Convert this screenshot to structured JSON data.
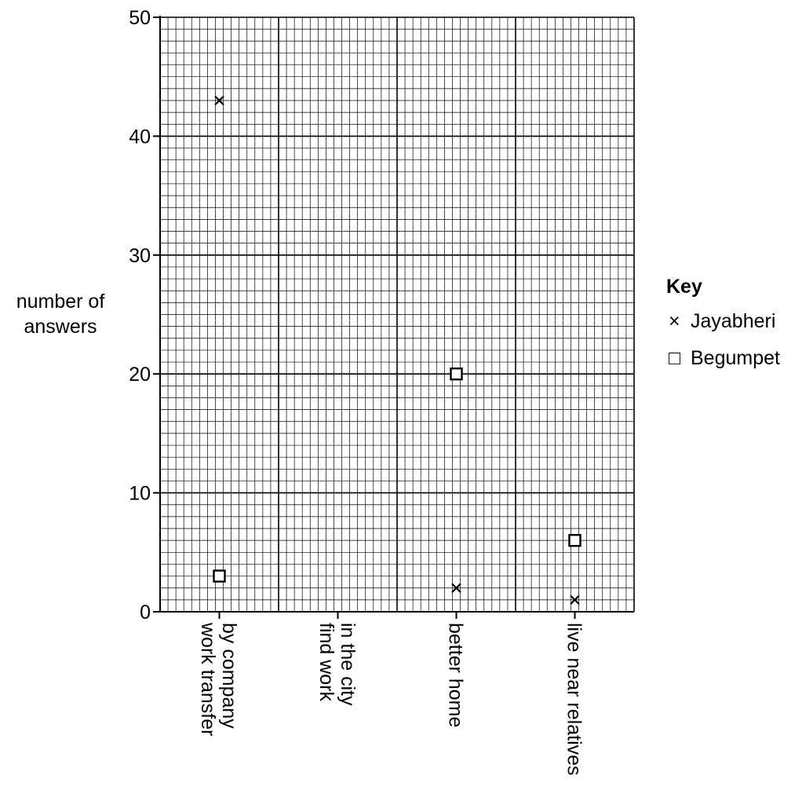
{
  "chart_data": {
    "type": "scatter",
    "title": "",
    "xlabel": "",
    "ylabel": [
      "number of",
      "answers"
    ],
    "ylim": [
      0,
      50
    ],
    "yticks": [
      0,
      10,
      20,
      30,
      40,
      50
    ],
    "grid": "fine graph paper (1 unit minor, 10 unit major)",
    "categories": [
      [
        "work transfer",
        "by company"
      ],
      [
        "find work",
        "in the city"
      ],
      [
        "better home"
      ],
      [
        "live near relatives"
      ]
    ],
    "series": [
      {
        "name": "Jayabheri",
        "marker": "cross",
        "values": [
          43,
          null,
          2,
          1
        ]
      },
      {
        "name": "Begumpet",
        "marker": "square",
        "values": [
          3,
          null,
          20,
          6
        ]
      }
    ],
    "legend": {
      "title": "Key",
      "position": "right",
      "entries": [
        {
          "symbol": "×",
          "label": "Jayabheri"
        },
        {
          "symbol": "□",
          "label": "Begumpet"
        }
      ]
    }
  }
}
